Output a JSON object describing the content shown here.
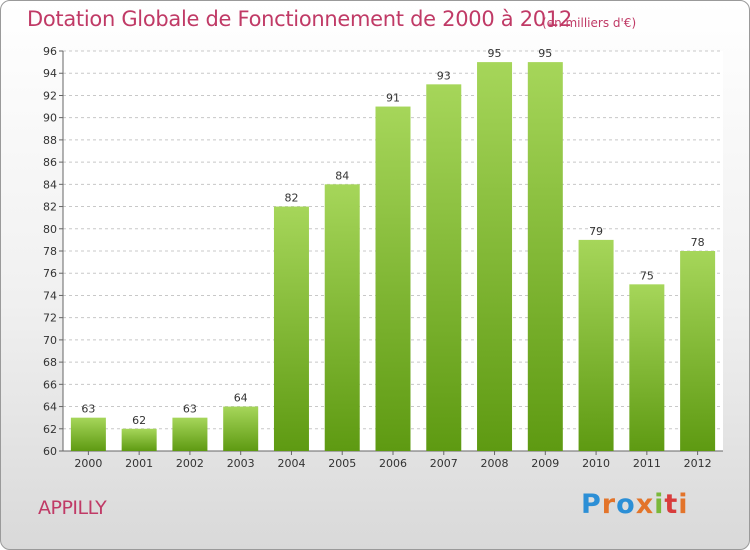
{
  "header": {
    "title": "Dotation Globale de Fonctionnement de 2000 à 2012",
    "unit": "(en milliers d'€)"
  },
  "footer": {
    "commune": "APPILLY",
    "logo_text": "Proxiti",
    "logo_letters": [
      "P",
      "r",
      "o",
      "x",
      "i",
      "t",
      "i"
    ]
  },
  "colors": {
    "title": "#c03a66",
    "bar_top": "#a6d65a",
    "bar_bottom": "#5e9a12",
    "grid": "#c8c8c8"
  },
  "chart_data": {
    "type": "bar",
    "title": "Dotation Globale de Fonctionnement de 2000 à 2012",
    "subtitle": "(en milliers d'€)",
    "xlabel": "",
    "ylabel": "",
    "categories": [
      "2000",
      "2001",
      "2002",
      "2003",
      "2004",
      "2005",
      "2006",
      "2007",
      "2008",
      "2009",
      "2010",
      "2011",
      "2012"
    ],
    "values": [
      63,
      62,
      63,
      64,
      82,
      84,
      91,
      93,
      95,
      95,
      79,
      75,
      78
    ],
    "ylim": [
      60,
      96
    ],
    "yticks": [
      60,
      62,
      64,
      66,
      68,
      70,
      72,
      74,
      76,
      78,
      80,
      82,
      84,
      86,
      88,
      90,
      92,
      94,
      96
    ],
    "grid": true,
    "legend": "none"
  }
}
